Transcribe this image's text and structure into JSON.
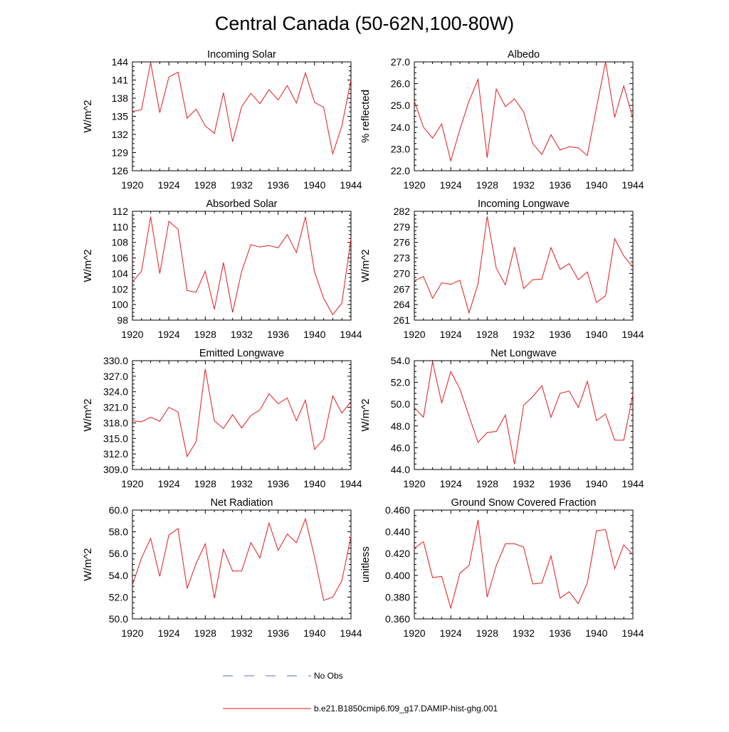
{
  "figure": {
    "title": "Central Canada (50-62N,100-80W)"
  },
  "legend": {
    "entries": [
      {
        "label": "No Obs",
        "color": "#5a6fd6",
        "style": "dashed"
      },
      {
        "label": "b.e21.B1850cmip6.f09_g17.DAMIP-hist-ghg.001",
        "color": "#e41a1c",
        "style": "solid"
      }
    ]
  },
  "series_color": "#e41a1c",
  "chart_data": [
    {
      "type": "line",
      "title": "Incoming Solar",
      "ylabel": "W/m^2",
      "xlim": [
        1920,
        1944
      ],
      "ylim": [
        126,
        144
      ],
      "xticks": [
        "1920",
        "1924",
        "1928",
        "1932",
        "1936",
        "1940",
        "1944"
      ],
      "yticks": [
        "126",
        "129",
        "132",
        "135",
        "138",
        "141",
        "144"
      ],
      "x": [
        1920,
        1921,
        1922,
        1923,
        1924,
        1925,
        1926,
        1927,
        1928,
        1929,
        1930,
        1931,
        1932,
        1933,
        1934,
        1935,
        1936,
        1937,
        1938,
        1939,
        1940,
        1941,
        1942,
        1943,
        1944
      ],
      "series": [
        {
          "values": [
            135.8,
            136.1,
            143.9,
            135.6,
            141.5,
            142.3,
            134.7,
            136.2,
            133.4,
            132.2,
            138.9,
            130.8,
            136.6,
            138.8,
            137.1,
            139.4,
            137.7,
            140.1,
            137.2,
            142.2,
            137.3,
            136.5,
            128.8,
            133.4,
            141.1
          ]
        }
      ]
    },
    {
      "type": "line",
      "title": "Albedo",
      "ylabel": "% reflected",
      "xlim": [
        1920,
        1944
      ],
      "ylim": [
        22.0,
        27.0
      ],
      "xticks": [
        "1920",
        "1924",
        "1928",
        "1932",
        "1936",
        "1940",
        "1944"
      ],
      "yticks": [
        "22.0",
        "23.0",
        "24.0",
        "25.0",
        "26.0",
        "27.0"
      ],
      "x": [
        1920,
        1921,
        1922,
        1923,
        1924,
        1925,
        1926,
        1927,
        1928,
        1929,
        1930,
        1931,
        1932,
        1933,
        1934,
        1935,
        1936,
        1937,
        1938,
        1939,
        1940,
        1941,
        1942,
        1943,
        1944
      ],
      "series": [
        {
          "values": [
            25.2,
            24.0,
            23.5,
            24.15,
            22.45,
            23.9,
            25.2,
            26.2,
            22.6,
            25.75,
            24.95,
            25.3,
            24.7,
            23.25,
            22.75,
            23.65,
            22.95,
            23.1,
            23.05,
            22.7,
            24.9,
            27.0,
            24.45,
            25.9,
            24.4
          ]
        }
      ]
    },
    {
      "type": "line",
      "title": "Absorbed Solar",
      "ylabel": "W/m^2",
      "xlim": [
        1920,
        1944
      ],
      "ylim": [
        98,
        112
      ],
      "xticks": [
        "1920",
        "1924",
        "1928",
        "1932",
        "1936",
        "1940",
        "1944"
      ],
      "yticks": [
        "98",
        "100",
        "102",
        "104",
        "106",
        "108",
        "110",
        "112"
      ],
      "x": [
        1920,
        1921,
        1922,
        1923,
        1924,
        1925,
        1926,
        1927,
        1928,
        1929,
        1930,
        1931,
        1932,
        1933,
        1934,
        1935,
        1936,
        1937,
        1938,
        1939,
        1940,
        1941,
        1942,
        1943,
        1944
      ],
      "series": [
        {
          "values": [
            102.9,
            104.3,
            111.3,
            104.0,
            110.7,
            109.7,
            101.8,
            101.6,
            104.3,
            99.4,
            105.4,
            99.0,
            104.3,
            107.7,
            107.4,
            107.6,
            107.3,
            109.0,
            106.7,
            111.3,
            104.2,
            100.8,
            98.7,
            100.2,
            108.5
          ]
        }
      ]
    },
    {
      "type": "line",
      "title": "Incoming Longwave",
      "ylabel": "W/m^2",
      "xlim": [
        1920,
        1944
      ],
      "ylim": [
        261,
        282
      ],
      "xticks": [
        "1920",
        "1924",
        "1928",
        "1932",
        "1936",
        "1940",
        "1944"
      ],
      "yticks": [
        "261",
        "264",
        "267",
        "270",
        "273",
        "276",
        "279",
        "282"
      ],
      "x": [
        1920,
        1921,
        1922,
        1923,
        1924,
        1925,
        1926,
        1927,
        1928,
        1929,
        1930,
        1931,
        1932,
        1933,
        1934,
        1935,
        1936,
        1937,
        1938,
        1939,
        1940,
        1941,
        1942,
        1943,
        1944
      ],
      "series": [
        {
          "values": [
            268.6,
            269.4,
            265.2,
            268.2,
            267.9,
            268.7,
            262.4,
            268.0,
            281.0,
            271.0,
            267.8,
            275.1,
            267.1,
            268.8,
            268.9,
            275.0,
            270.8,
            271.9,
            268.8,
            270.3,
            264.4,
            265.7,
            276.7,
            273.4,
            271.2
          ]
        }
      ]
    },
    {
      "type": "line",
      "title": "Emitted Longwave",
      "ylabel": "W/m^2",
      "xlim": [
        1920,
        1944
      ],
      "ylim": [
        309.0,
        330.0
      ],
      "xticks": [
        "1920",
        "1924",
        "1928",
        "1932",
        "1936",
        "1940",
        "1944"
      ],
      "yticks": [
        "309.0",
        "312.0",
        "315.0",
        "318.0",
        "321.0",
        "324.0",
        "327.0",
        "330.0"
      ],
      "x": [
        1920,
        1921,
        1922,
        1923,
        1924,
        1925,
        1926,
        1927,
        1928,
        1929,
        1930,
        1931,
        1932,
        1933,
        1934,
        1935,
        1936,
        1937,
        1938,
        1939,
        1940,
        1941,
        1942,
        1943,
        1944
      ],
      "series": [
        {
          "values": [
            318.4,
            318.2,
            319.1,
            318.3,
            321.0,
            320.1,
            311.5,
            314.4,
            328.4,
            318.4,
            316.9,
            319.6,
            317.0,
            319.4,
            320.5,
            323.6,
            321.7,
            322.8,
            318.4,
            322.4,
            312.9,
            314.8,
            323.2,
            319.9,
            322.1
          ]
        }
      ]
    },
    {
      "type": "line",
      "title": "Net Longwave",
      "ylabel": "W/m^2",
      "xlim": [
        1920,
        1944
      ],
      "ylim": [
        44.0,
        54.0
      ],
      "xticks": [
        "1920",
        "1924",
        "1928",
        "1932",
        "1936",
        "1940",
        "1944"
      ],
      "yticks": [
        "44.0",
        "46.0",
        "48.0",
        "50.0",
        "52.0",
        "54.0"
      ],
      "x": [
        1920,
        1921,
        1922,
        1923,
        1924,
        1925,
        1926,
        1927,
        1928,
        1929,
        1930,
        1931,
        1932,
        1933,
        1934,
        1935,
        1936,
        1937,
        1938,
        1939,
        1940,
        1941,
        1942,
        1943,
        1944
      ],
      "series": [
        {
          "values": [
            49.7,
            48.8,
            53.9,
            50.1,
            53.0,
            51.4,
            48.9,
            46.5,
            47.4,
            47.5,
            49.0,
            44.5,
            49.9,
            50.7,
            51.7,
            48.8,
            51.0,
            51.2,
            49.7,
            52.1,
            48.5,
            49.1,
            46.7,
            46.7,
            50.9
          ]
        }
      ]
    },
    {
      "type": "line",
      "title": "Net Radiation",
      "ylabel": "W/m^2",
      "xlim": [
        1920,
        1944
      ],
      "ylim": [
        50.0,
        60.0
      ],
      "xticks": [
        "1920",
        "1924",
        "1928",
        "1932",
        "1936",
        "1940",
        "1944"
      ],
      "yticks": [
        "50.0",
        "52.0",
        "54.0",
        "56.0",
        "58.0",
        "60.0"
      ],
      "x": [
        1920,
        1921,
        1922,
        1923,
        1924,
        1925,
        1926,
        1927,
        1928,
        1929,
        1930,
        1931,
        1932,
        1933,
        1934,
        1935,
        1936,
        1937,
        1938,
        1939,
        1940,
        1941,
        1942,
        1943,
        1944
      ],
      "series": [
        {
          "values": [
            53.1,
            55.6,
            57.4,
            53.9,
            57.7,
            58.3,
            52.8,
            55.1,
            56.9,
            51.9,
            56.4,
            54.4,
            54.4,
            57.0,
            55.6,
            58.8,
            56.3,
            57.8,
            57.0,
            59.2,
            55.7,
            51.7,
            52.0,
            53.5,
            57.6
          ]
        }
      ]
    },
    {
      "type": "line",
      "title": "Ground Snow Covered Fraction",
      "ylabel": "unitless",
      "xlim": [
        1920,
        1944
      ],
      "ylim": [
        0.36,
        0.46
      ],
      "xticks": [
        "1920",
        "1924",
        "1928",
        "1932",
        "1936",
        "1940",
        "1944"
      ],
      "yticks": [
        "0.360",
        "0.380",
        "0.400",
        "0.420",
        "0.440",
        "0.460"
      ],
      "x": [
        1920,
        1921,
        1922,
        1923,
        1924,
        1925,
        1926,
        1927,
        1928,
        1929,
        1930,
        1931,
        1932,
        1933,
        1934,
        1935,
        1936,
        1937,
        1938,
        1939,
        1940,
        1941,
        1942,
        1943,
        1944
      ],
      "series": [
        {
          "values": [
            0.425,
            0.431,
            0.398,
            0.399,
            0.37,
            0.402,
            0.409,
            0.451,
            0.38,
            0.409,
            0.429,
            0.429,
            0.426,
            0.392,
            0.393,
            0.418,
            0.379,
            0.385,
            0.374,
            0.393,
            0.441,
            0.442,
            0.406,
            0.428,
            0.419
          ]
        }
      ]
    }
  ]
}
